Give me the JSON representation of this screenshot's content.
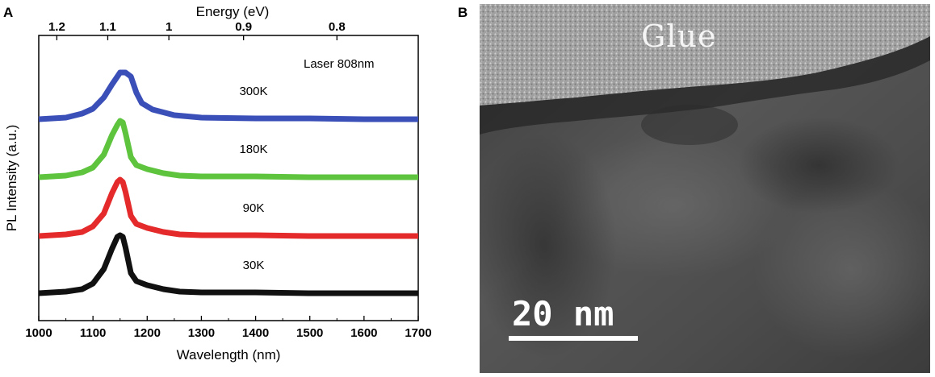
{
  "panel_a_label": "A",
  "panel_b_label": "B",
  "chart_data": {
    "type": "line",
    "title": "",
    "xlabel": "Wavelength (nm)",
    "ylabel": "PL Intensity (a.u.)",
    "top_axis_label": "Energy (eV)",
    "xlim": [
      1000,
      1700
    ],
    "xticks": [
      1000,
      1100,
      1200,
      1300,
      1400,
      1500,
      1600,
      1700
    ],
    "top_ticks": [
      "1.2",
      "1.1",
      "1",
      "0.9",
      "0.8"
    ],
    "annotation": "Laser 808nm",
    "grid": false,
    "series": [
      {
        "name": "300K",
        "color": "#3b4fb8",
        "offset": 3,
        "x": [
          1000,
          1050,
          1080,
          1100,
          1120,
          1135,
          1145,
          1150,
          1160,
          1170,
          1180,
          1190,
          1210,
          1250,
          1300,
          1400,
          1500,
          1600,
          1700
        ],
        "y": [
          0.0,
          0.02,
          0.07,
          0.13,
          0.27,
          0.43,
          0.53,
          0.58,
          0.58,
          0.53,
          0.33,
          0.2,
          0.12,
          0.05,
          0.02,
          0.01,
          0.01,
          0.0,
          0.0
        ]
      },
      {
        "name": "180K",
        "color": "#5ec43e",
        "offset": 2,
        "x": [
          1000,
          1050,
          1080,
          1100,
          1120,
          1135,
          1145,
          1150,
          1155,
          1160,
          1170,
          1180,
          1200,
          1230,
          1260,
          1300,
          1400,
          1500,
          1600,
          1700
        ],
        "y": [
          0.0,
          0.02,
          0.06,
          0.12,
          0.28,
          0.52,
          0.65,
          0.7,
          0.68,
          0.55,
          0.25,
          0.15,
          0.1,
          0.05,
          0.02,
          0.01,
          0.01,
          0.0,
          0.0,
          0.0
        ]
      },
      {
        "name": "90K",
        "color": "#e42a2a",
        "offset": 1,
        "x": [
          1000,
          1050,
          1080,
          1100,
          1120,
          1135,
          1145,
          1150,
          1155,
          1160,
          1170,
          1180,
          1200,
          1230,
          1260,
          1300,
          1400,
          1500,
          1600,
          1700
        ],
        "y": [
          0.0,
          0.02,
          0.05,
          0.12,
          0.28,
          0.53,
          0.67,
          0.7,
          0.67,
          0.55,
          0.25,
          0.15,
          0.1,
          0.05,
          0.02,
          0.01,
          0.01,
          0.0,
          0.0,
          0.0
        ]
      },
      {
        "name": "30K",
        "color": "#111111",
        "offset": 0,
        "x": [
          1000,
          1050,
          1080,
          1100,
          1120,
          1135,
          1145,
          1150,
          1155,
          1160,
          1170,
          1180,
          1200,
          1230,
          1260,
          1300,
          1400,
          1500,
          1600,
          1700
        ],
        "y": [
          0.0,
          0.02,
          0.05,
          0.12,
          0.3,
          0.55,
          0.7,
          0.72,
          0.7,
          0.57,
          0.25,
          0.15,
          0.1,
          0.05,
          0.02,
          0.01,
          0.01,
          0.0,
          0.0,
          0.0
        ]
      }
    ]
  },
  "image_panel": {
    "glue_label": "Glue",
    "scale_label": "20 nm"
  }
}
